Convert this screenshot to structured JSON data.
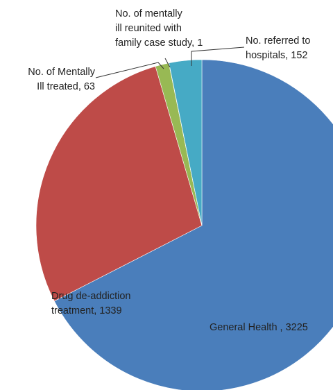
{
  "chart_data": {
    "type": "pie",
    "slices": [
      {
        "name": "General Health",
        "value": 3225,
        "label_lines": [
          "General Health , 3225"
        ],
        "color": "#4a7ebb"
      },
      {
        "name": "Drug de-addiction treatment",
        "value": 1339,
        "label_lines": [
          "Drug de-addiction",
          "treatment, 1339"
        ],
        "color": "#be4b48"
      },
      {
        "name": "No. of Mentally Ill treated",
        "value": 63,
        "label_lines": [
          "No. of Mentally",
          "Ill treated, 63"
        ],
        "color": "#98b954"
      },
      {
        "name": "No. of mentally ill reunited with family case study",
        "value": 1,
        "label_lines": [
          "No. of mentally",
          "ill reunited with",
          "family case study, 1"
        ],
        "color": "#7d60a0"
      },
      {
        "name": "No. referred to hospitals",
        "value": 152,
        "label_lines": [
          "No. referred to",
          "hospitals, 152"
        ],
        "color": "#46aac5"
      }
    ]
  }
}
